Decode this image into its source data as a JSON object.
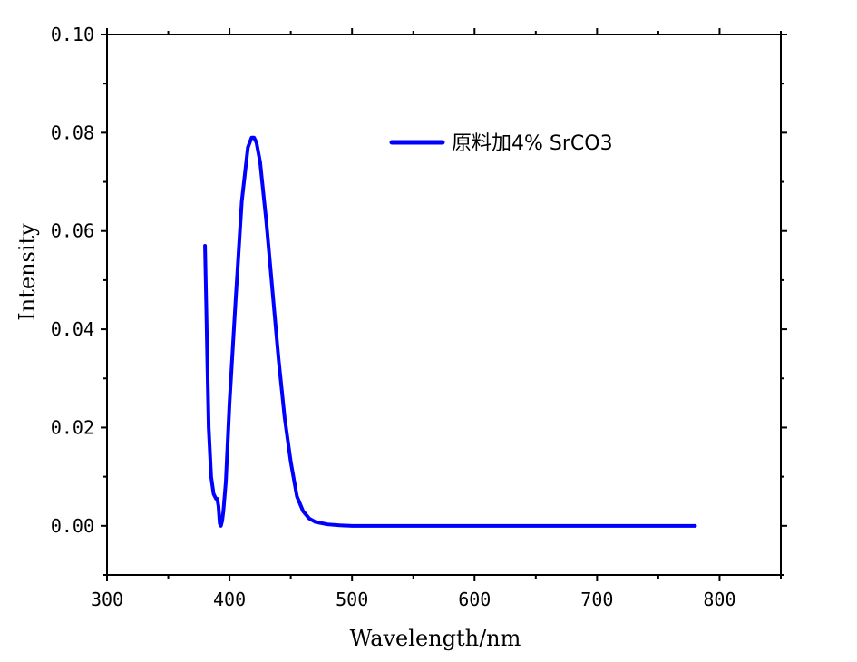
{
  "chart_data": {
    "type": "line",
    "title": "",
    "xlabel": "Wavelength/nm",
    "ylabel": "Intensity",
    "xlim": [
      300,
      850
    ],
    "ylim": [
      -0.01,
      0.1
    ],
    "x_ticks": [
      300,
      400,
      500,
      600,
      700,
      800
    ],
    "x_tick_labels": [
      "300",
      "400",
      "500",
      "600",
      "700",
      "800"
    ],
    "y_ticks": [
      0.0,
      0.02,
      0.04,
      0.06,
      0.08,
      0.1
    ],
    "y_tick_labels": [
      "0.00",
      "0.02",
      "0.04",
      "0.06",
      "0.08",
      "0.10"
    ],
    "grid": false,
    "legend_position": "top-right",
    "series": [
      {
        "name": "原料加4% SrCO3",
        "color": "#0000ff",
        "x": [
          380,
          381,
          382,
          383,
          385,
          387,
          389,
          390,
          391,
          392,
          393,
          394,
          395,
          397,
          400,
          405,
          410,
          415,
          418,
          420,
          422,
          425,
          430,
          435,
          440,
          445,
          450,
          455,
          460,
          465,
          470,
          480,
          490,
          500,
          550,
          600,
          650,
          700,
          750,
          780
        ],
        "y": [
          0.057,
          0.045,
          0.032,
          0.02,
          0.01,
          0.0065,
          0.0055,
          0.0055,
          0.004,
          0.0005,
          0.0,
          0.001,
          0.003,
          0.009,
          0.025,
          0.046,
          0.066,
          0.077,
          0.079,
          0.079,
          0.078,
          0.074,
          0.062,
          0.048,
          0.034,
          0.022,
          0.013,
          0.006,
          0.003,
          0.0015,
          0.0008,
          0.0003,
          0.0001,
          0.0,
          0.0,
          0.0,
          0.0,
          0.0,
          0.0,
          0.0
        ]
      }
    ]
  }
}
